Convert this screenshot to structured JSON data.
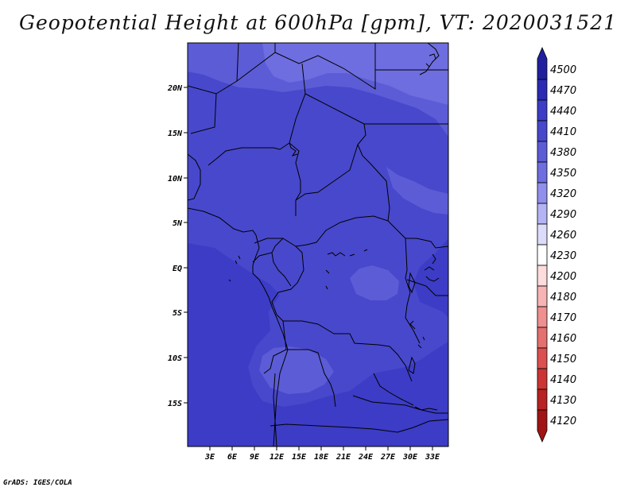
{
  "title": "Geopotential Height at 600hPa [gpm], VT: 2020031521",
  "footer": "GrADS: IGES/COLA",
  "colors": {
    "fill_4440": "#3c3cc6",
    "fill_4410": "#4848cc",
    "fill_4380": "#5c5cd6",
    "fill_4350": "#6e6ee0",
    "border": "#000000"
  },
  "map": {
    "lon_labels": [
      "3E",
      "6E",
      "9E",
      "12E",
      "15E",
      "18E",
      "21E",
      "24E",
      "27E",
      "30E",
      "33E"
    ],
    "lat_labels": [
      "20N",
      "15N",
      "10N",
      "5N",
      "EQ",
      "5S",
      "10S",
      "15S"
    ]
  },
  "legend": {
    "levels": [
      "4500",
      "4470",
      "4440",
      "4410",
      "4380",
      "4350",
      "4320",
      "4290",
      "4260",
      "4230",
      "4200",
      "4180",
      "4170",
      "4160",
      "4150",
      "4140",
      "4130",
      "4120"
    ],
    "colors": [
      "#20209e",
      "#2a2ab4",
      "#3c3cc6",
      "#4848cc",
      "#5c5cd6",
      "#6e6ee0",
      "#9090ec",
      "#b4b4f4",
      "#dcdcfa",
      "#ffffff",
      "#fcdcdc",
      "#f6b4b4",
      "#ee9090",
      "#e47070",
      "#dc5050",
      "#cc3434",
      "#b82222",
      "#a01414"
    ]
  }
}
